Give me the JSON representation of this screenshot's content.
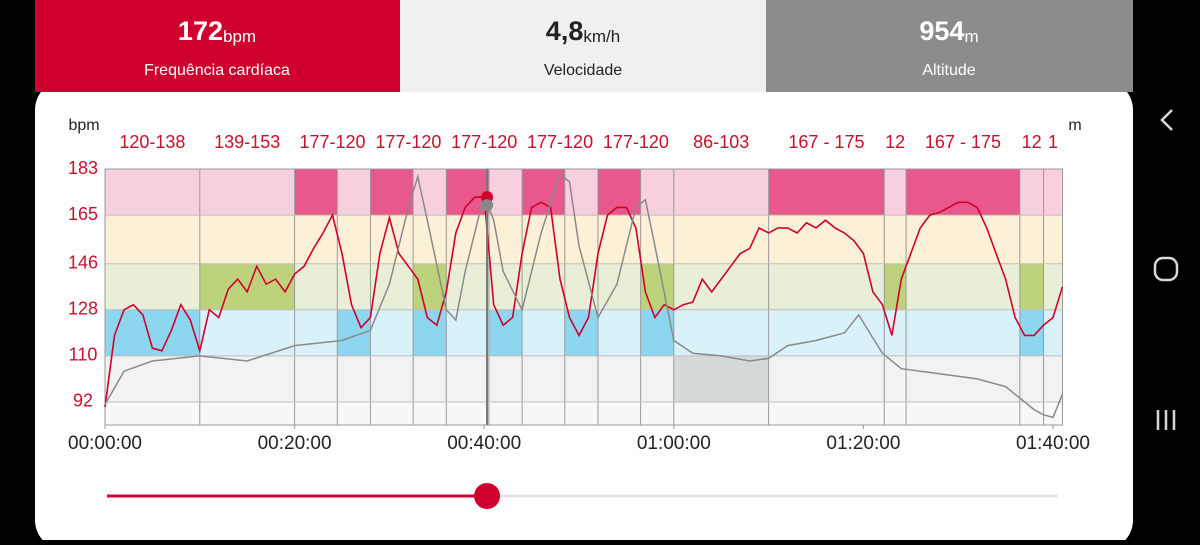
{
  "tabs": [
    {
      "value": "172",
      "unit": "bpm",
      "label": "Frequência cardíaca"
    },
    {
      "value": "4,8",
      "unit": "km/h",
      "label": "Velocidade"
    },
    {
      "value": "954",
      "unit": "m",
      "label": "Altitude"
    }
  ],
  "chart_data": {
    "type": "line",
    "y_label": "bpm",
    "y2_label": "m",
    "xlim": [
      0,
      101
    ],
    "ylim": [
      83,
      183
    ],
    "y2lim": [
      0,
      100
    ],
    "xticks": [
      {
        "value": 0,
        "label": "00:00:00"
      },
      {
        "value": 20,
        "label": "00:20:00"
      },
      {
        "value": 40,
        "label": "00:40:00"
      },
      {
        "value": 60,
        "label": "01:00:00"
      },
      {
        "value": 80,
        "label": "01:20:00"
      },
      {
        "value": 100,
        "label": "01:40:00"
      }
    ],
    "yticks": [
      92,
      110,
      128,
      146,
      165,
      183
    ],
    "zones": [
      {
        "from": 165,
        "to": 183,
        "color": "#f7cfdf",
        "active": "#e8588c"
      },
      {
        "from": 146,
        "to": 165,
        "color": "#fcf0d6",
        "active": "#f3d98c"
      },
      {
        "from": 128,
        "to": 146,
        "color": "#e9efd7",
        "active": "#bcd37c"
      },
      {
        "from": 110,
        "to": 128,
        "color": "#d9f1f9",
        "active": "#8dd6ef"
      },
      {
        "from": 92,
        "to": 110,
        "color": "#f2f2f2",
        "active": "#d5d9d9"
      },
      {
        "from": 83,
        "to": 92,
        "color": "#f8f8f8",
        "active": "#e0e0e0"
      }
    ],
    "segments": [
      {
        "label": "120-138",
        "start": 0,
        "end": 10,
        "blocks": [
          {
            "start": 0,
            "end": 10,
            "zones": [
              3
            ]
          }
        ]
      },
      {
        "label": "139-153",
        "start": 10,
        "end": 20,
        "blocks": [
          {
            "start": 10,
            "end": 20,
            "zones": [
              2
            ]
          }
        ]
      },
      {
        "label": "177-120",
        "start": 20,
        "end": 28,
        "blocks": [
          {
            "start": 20,
            "end": 24.5,
            "zones": [
              0
            ]
          },
          {
            "start": 24.5,
            "end": 28,
            "zones": [
              3
            ]
          }
        ]
      },
      {
        "label": "177-120",
        "start": 28,
        "end": 36,
        "blocks": [
          {
            "start": 28,
            "end": 32.5,
            "zones": [
              0
            ]
          },
          {
            "start": 32.5,
            "end": 36,
            "zones": [
              2,
              3
            ]
          }
        ]
      },
      {
        "label": "177-120",
        "start": 36,
        "end": 44,
        "blocks": [
          {
            "start": 36,
            "end": 40.5,
            "zones": [
              0
            ]
          },
          {
            "start": 40.5,
            "end": 44,
            "zones": [
              3
            ]
          }
        ]
      },
      {
        "label": "177-120",
        "start": 44,
        "end": 52,
        "blocks": [
          {
            "start": 44,
            "end": 48.5,
            "zones": [
              0
            ]
          },
          {
            "start": 48.5,
            "end": 52,
            "zones": [
              3
            ]
          }
        ]
      },
      {
        "label": "177-120",
        "start": 52,
        "end": 60,
        "blocks": [
          {
            "start": 52,
            "end": 56.5,
            "zones": [
              0
            ]
          },
          {
            "start": 56.5,
            "end": 60,
            "zones": [
              2,
              3
            ]
          }
        ]
      },
      {
        "label": "86-103",
        "start": 60,
        "end": 70,
        "blocks": [
          {
            "start": 60,
            "end": 70,
            "zones": [
              4
            ]
          }
        ]
      },
      {
        "label": "167 - 175",
        "start": 70,
        "end": 82.2,
        "blocks": [
          {
            "start": 70,
            "end": 82.2,
            "zones": [
              0
            ]
          }
        ]
      },
      {
        "label": "12",
        "start": 82.2,
        "end": 84.5,
        "blocks": [
          {
            "start": 82.2,
            "end": 84.5,
            "zones": [
              2
            ]
          }
        ]
      },
      {
        "label": "167 - 175",
        "start": 84.5,
        "end": 96.5,
        "blocks": [
          {
            "start": 84.5,
            "end": 96.5,
            "zones": [
              0
            ]
          }
        ]
      },
      {
        "label": "12",
        "start": 96.5,
        "end": 99,
        "blocks": [
          {
            "start": 96.5,
            "end": 99,
            "zones": [
              2,
              3
            ]
          }
        ]
      },
      {
        "label": "1",
        "start": 99,
        "end": 101,
        "blocks": [
          {
            "start": 99,
            "end": 101,
            "zones": []
          }
        ]
      }
    ],
    "x": [
      0,
      1,
      2,
      3,
      4,
      5,
      6,
      7,
      8,
      9,
      10,
      11,
      12,
      13,
      14,
      15,
      16,
      17,
      18,
      19,
      20,
      21,
      22,
      23,
      24,
      25,
      26,
      27,
      28,
      29,
      30,
      31,
      32,
      33,
      34,
      35,
      36,
      37,
      38,
      39,
      40,
      41,
      42,
      43,
      44,
      45,
      46,
      47,
      48,
      49,
      50,
      51,
      52,
      53,
      54,
      55,
      56,
      57,
      58,
      59,
      60,
      61,
      62,
      63,
      64,
      65,
      66,
      67,
      68,
      69,
      70,
      71,
      72,
      73,
      74,
      75,
      76,
      77,
      78,
      79,
      80,
      81,
      82,
      83,
      84,
      85,
      86,
      87,
      88,
      89,
      90,
      91,
      92,
      93,
      94,
      95,
      96,
      97,
      98,
      99,
      100,
      101
    ],
    "series": [
      {
        "name": "Frequência cardíaca",
        "color": "#d0002e",
        "values": [
          90,
          118,
          128,
          130,
          126,
          113,
          112,
          120,
          130,
          124,
          112,
          128,
          125,
          136,
          140,
          135,
          145,
          138,
          140,
          135,
          142,
          145,
          152,
          158,
          165,
          150,
          130,
          121,
          125,
          150,
          164,
          150,
          145,
          140,
          125,
          122,
          135,
          158,
          168,
          172,
          172,
          130,
          122,
          125,
          150,
          168,
          170,
          168,
          140,
          125,
          118,
          125,
          150,
          165,
          168,
          168,
          160,
          135,
          125,
          130,
          128,
          130,
          131,
          140,
          135,
          140,
          145,
          150,
          152,
          160,
          158,
          160,
          160,
          158,
          162,
          160,
          163,
          160,
          158,
          155,
          150,
          135,
          130,
          118,
          140,
          150,
          160,
          165,
          166,
          168,
          170,
          170,
          168,
          160,
          150,
          140,
          125,
          118,
          118,
          122,
          125,
          137
        ]
      },
      {
        "name": "Altitude",
        "axis": "y2",
        "color": "#8a8a8a",
        "x": [
          0,
          2,
          5,
          10,
          15,
          20,
          25,
          28,
          30,
          32,
          33,
          34,
          36,
          37,
          38,
          40,
          41,
          42,
          44,
          46,
          48,
          49,
          50,
          52,
          54,
          56,
          57,
          58,
          60,
          62,
          65,
          68,
          70,
          72,
          75,
          78,
          79.5,
          81,
          82,
          84,
          88,
          92,
          95,
          98,
          99,
          100,
          101
        ],
        "values": [
          8,
          21,
          25,
          27,
          25,
          31,
          33,
          37,
          55,
          85,
          97,
          80,
          45,
          41,
          60,
          90,
          80,
          60,
          45,
          75,
          98,
          95,
          70,
          42,
          55,
          85,
          88,
          70,
          33,
          28,
          27,
          25,
          26,
          31,
          33,
          36,
          43,
          34,
          28,
          22,
          20,
          18,
          15,
          6,
          4,
          3,
          12
        ]
      }
    ],
    "cursor": 40.3,
    "cursor_value": 172
  }
}
